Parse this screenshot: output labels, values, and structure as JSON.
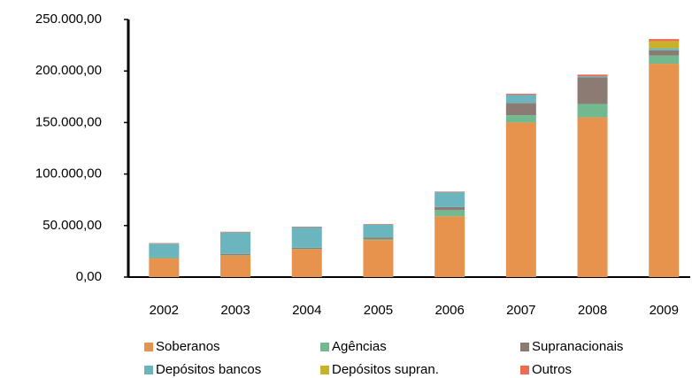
{
  "chart_data": {
    "type": "stacked-bar",
    "categories": [
      "2002",
      "2003",
      "2004",
      "2005",
      "2006",
      "2007",
      "2008",
      "2009"
    ],
    "series": [
      {
        "name": "Soberanos",
        "color": "#e8934d",
        "values": [
          18000,
          21000,
          27000,
          36000,
          59000,
          150000,
          155000,
          207000
        ]
      },
      {
        "name": "Agências",
        "color": "#72b98f",
        "values": [
          1000,
          500,
          500,
          1000,
          6000,
          7000,
          13000,
          8000
        ]
      },
      {
        "name": "Supranacionais",
        "color": "#8c7b72",
        "values": [
          500,
          1000,
          1000,
          1500,
          3000,
          12000,
          26000,
          5000
        ]
      },
      {
        "name": "Depósitos bancos",
        "color": "#6bb5be",
        "values": [
          13000,
          21000,
          20000,
          12500,
          14500,
          8000,
          1000,
          2000
        ]
      },
      {
        "name": "Depósitos supran.",
        "color": "#c9b22b",
        "values": [
          0,
          0,
          0,
          0,
          0,
          0,
          0,
          7000
        ]
      },
      {
        "name": "Outros",
        "color": "#ee6a50",
        "values": [
          500,
          500,
          500,
          500,
          500,
          1000,
          1500,
          2000
        ]
      }
    ],
    "ylim": [
      0,
      250000
    ],
    "yticks": [
      {
        "value": 0,
        "label": "0,00"
      },
      {
        "value": 50000,
        "label": "50.000,00"
      },
      {
        "value": 100000,
        "label": "100.000,00"
      },
      {
        "value": 150000,
        "label": "150.000,00"
      },
      {
        "value": 200000,
        "label": "200.000,00"
      },
      {
        "value": 250000,
        "label": "250.000,00"
      }
    ]
  }
}
